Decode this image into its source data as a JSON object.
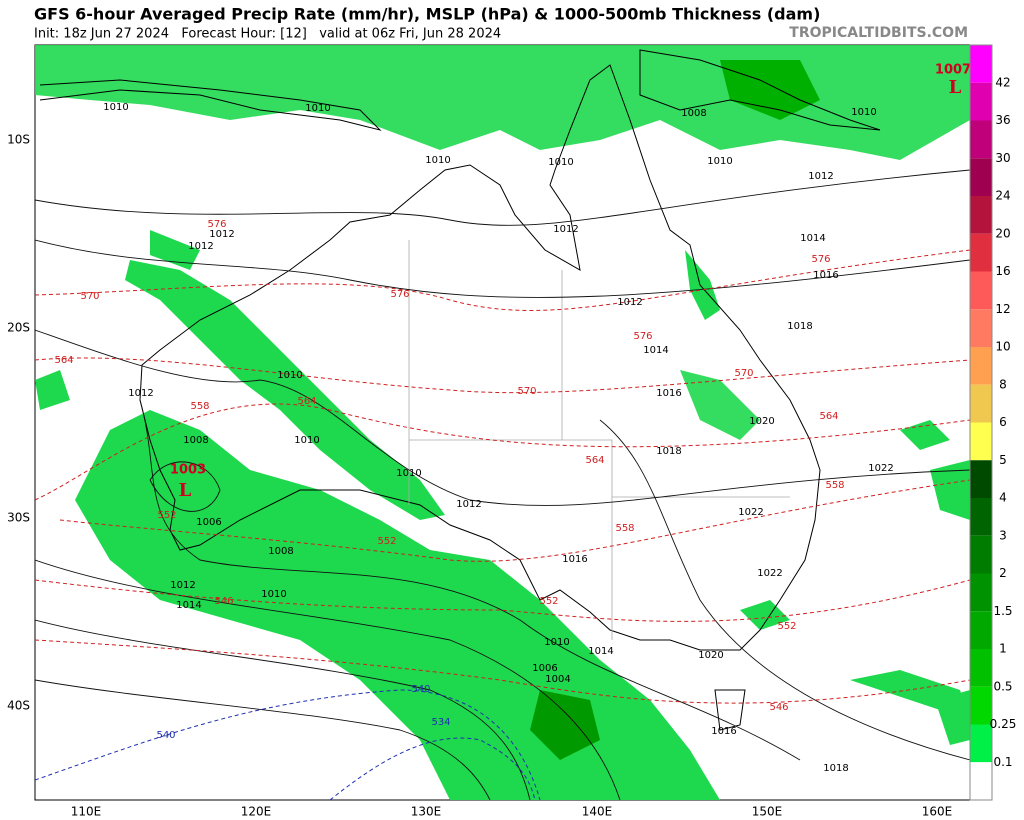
{
  "header": {
    "title": "GFS 6-hour Averaged Precip Rate (mm/hr), MSLP (hPa) & 1000-500mb Thickness (dam)",
    "subtitle": "Init: 18z Jun 27 2024   Forecast Hour: [12]   valid at 06z Fri, Jun 28 2024",
    "source": "TROPICALTIDBITS.COM"
  },
  "map": {
    "lon_labels": [
      "110E",
      "120E",
      "130E",
      "140E",
      "150E",
      "160E"
    ],
    "lat_labels": [
      "10S",
      "20S",
      "30S",
      "40S"
    ],
    "isobar_labels": [
      "1010",
      "1010",
      "1008",
      "1010",
      "1010",
      "1010",
      "1010",
      "1012",
      "1012",
      "1012",
      "1012",
      "1014",
      "1016",
      "1012",
      "1018",
      "1014",
      "1010",
      "1012",
      "1016",
      "1020",
      "1008",
      "1010",
      "1018",
      "1022",
      "1010",
      "1012",
      "1006",
      "1022",
      "1016",
      "1008",
      "1022",
      "1012",
      "1010",
      "1014",
      "1010",
      "1014",
      "1020",
      "1006",
      "1004",
      "1016",
      "1018"
    ],
    "thickness_labels": [
      "576",
      "570",
      "576",
      "576",
      "576",
      "564",
      "570",
      "570",
      "558",
      "564",
      "564",
      "564",
      "558",
      "558",
      "552",
      "552",
      "546",
      "552",
      "552",
      "546"
    ],
    "cold_thickness_labels": [
      "540",
      "534",
      "540"
    ],
    "lows": [
      {
        "pressure": "1003",
        "label": "L"
      },
      {
        "pressure": "1007",
        "label": "L"
      }
    ]
  },
  "colorbar": {
    "labels": [
      "42",
      "36",
      "30",
      "24",
      "20",
      "16",
      "12",
      "10",
      "8",
      "6",
      "5",
      "4",
      "3",
      "2",
      "1.5",
      "1",
      "0.5",
      "0.25",
      "0.1"
    ],
    "colors": [
      "#ff00ff",
      "#e000b0",
      "#c0007a",
      "#a00050",
      "#b4143c",
      "#e03040",
      "#ff5a5a",
      "#ff7a60",
      "#ffa050",
      "#f0c850",
      "#ffff50",
      "#004a00",
      "#006400",
      "#007c00",
      "#009200",
      "#00a800",
      "#00c000",
      "#00d800",
      "#00f048",
      "#ffffff"
    ]
  }
}
